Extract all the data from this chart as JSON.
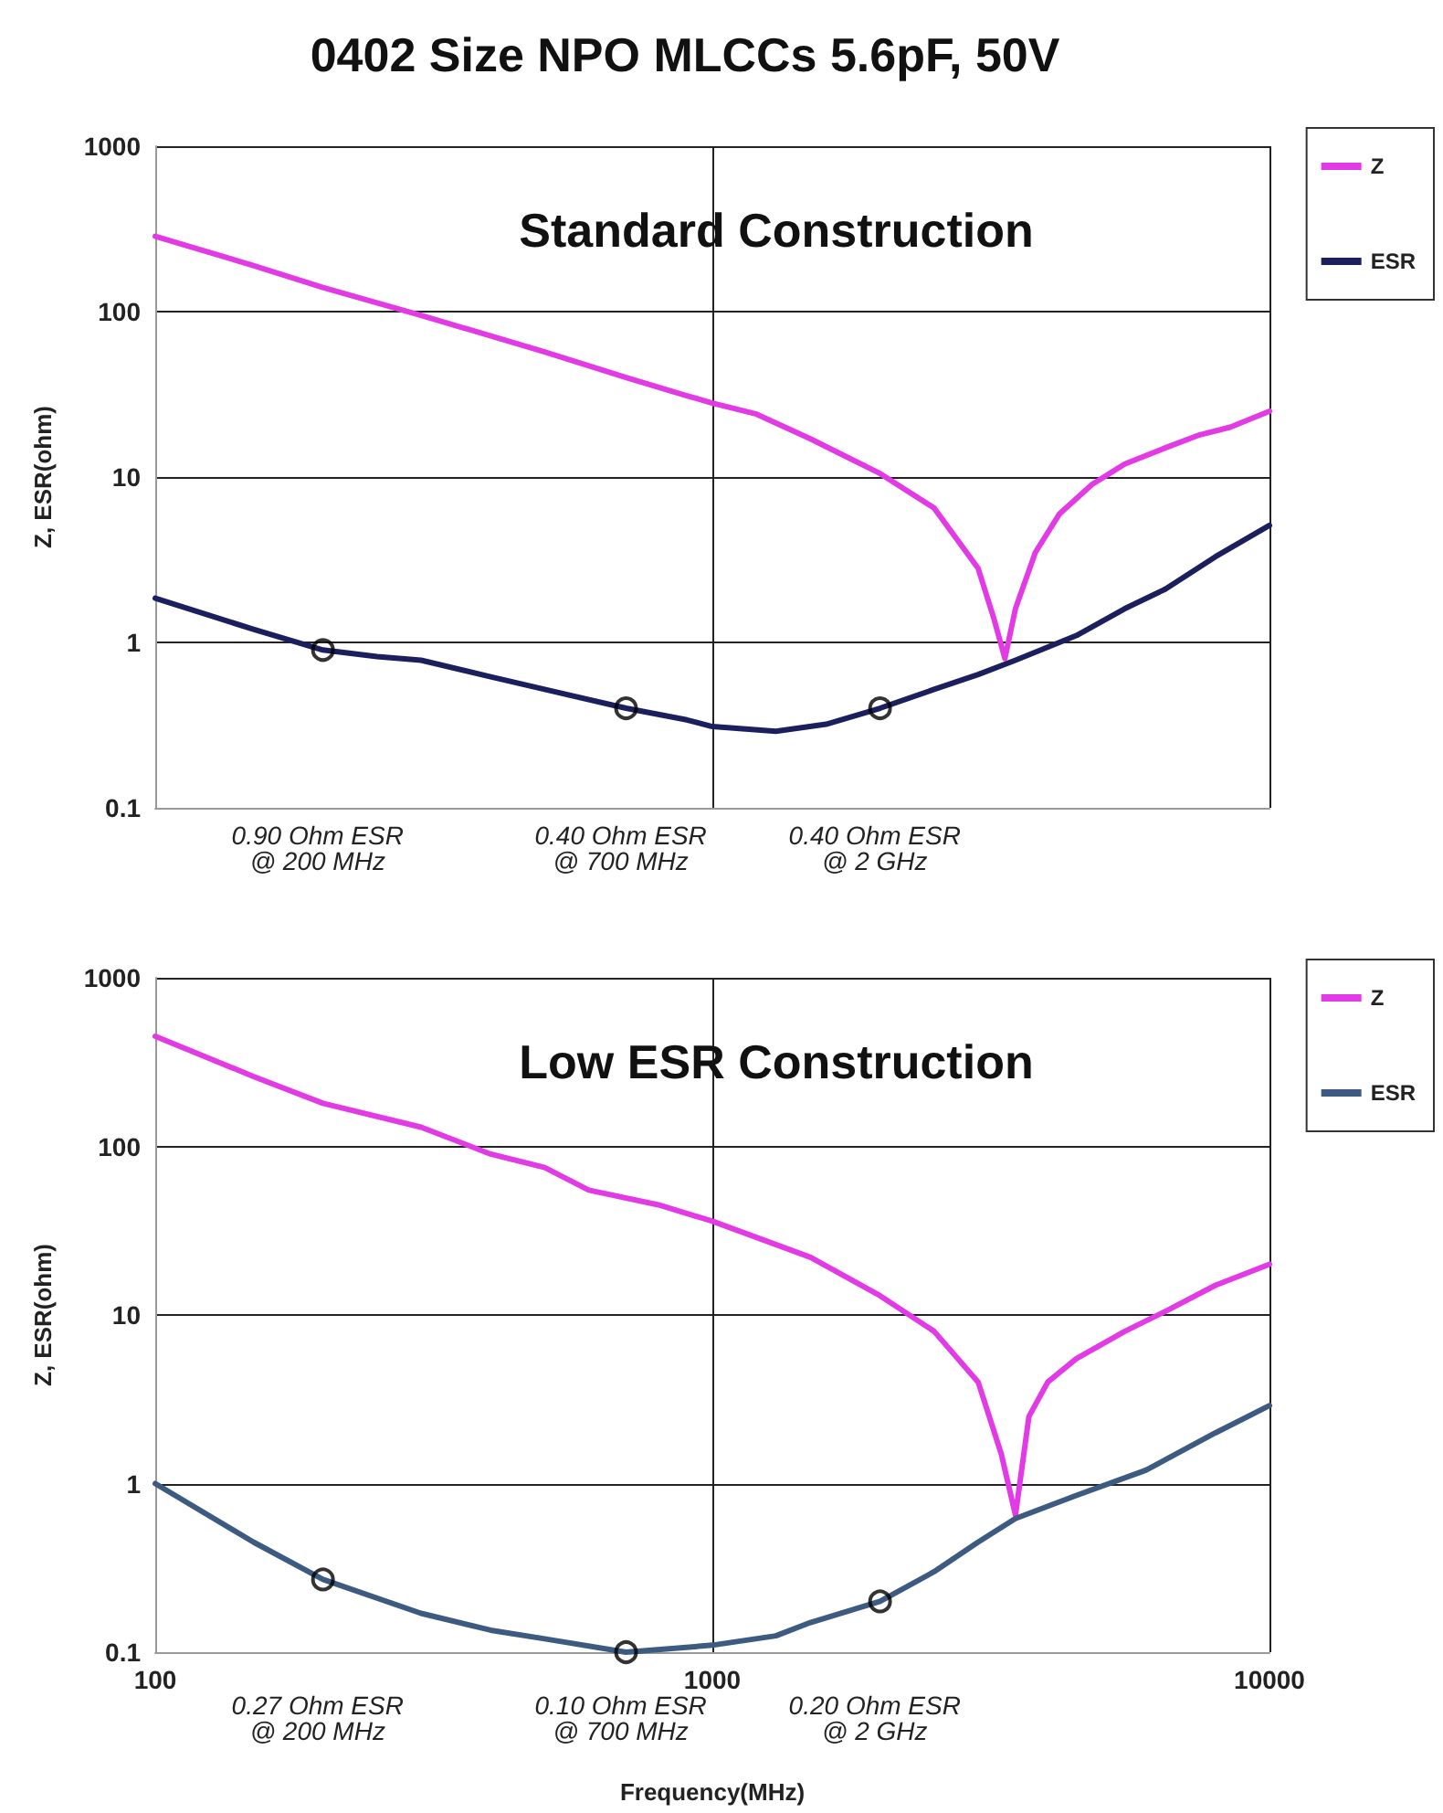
{
  "chart_data": [
    {
      "type": "line",
      "title": "0402 Size NPO MLCCs 5.6pF, 50V",
      "subtitle": "Standard Construction",
      "ylabel": "Z, ESR(ohm)",
      "log": "xy",
      "grid": true,
      "legend": "top right",
      "tick_labels": "y",
      "marker": "none",
      "line_style": "solid",
      "xlim": [
        100,
        10000
      ],
      "xticks": [
        100,
        1000,
        10000
      ],
      "ylim": [
        0.1,
        1000
      ],
      "yticks": [
        0.1,
        1,
        10,
        100,
        1000
      ],
      "series": [
        {
          "name": "Z",
          "color": "#e23be6",
          "x": [
            100,
            150,
            200,
            300,
            500,
            700,
            900,
            1000,
            1200,
            1500,
            2000,
            2500,
            3000,
            3200,
            3350,
            3500,
            3800,
            4200,
            4800,
            5500,
            6500,
            7500,
            8500,
            10000
          ],
          "values": [
            285,
            190,
            140,
            95,
            57,
            40,
            31,
            28,
            24,
            17,
            10.5,
            6.5,
            2.8,
            1.4,
            0.8,
            1.6,
            3.5,
            6,
            9,
            12,
            15,
            18,
            20,
            25
          ]
        },
        {
          "name": "ESR",
          "color": "#1c1f5e",
          "x": [
            100,
            150,
            200,
            250,
            300,
            400,
            500,
            700,
            900,
            1000,
            1300,
            1600,
            2000,
            2500,
            3000,
            3500,
            4500,
            5500,
            6500,
            8000,
            10000
          ],
          "values": [
            1.85,
            1.2,
            0.9,
            0.82,
            0.78,
            0.62,
            0.52,
            0.4,
            0.34,
            0.31,
            0.29,
            0.32,
            0.4,
            0.52,
            0.64,
            0.78,
            1.1,
            1.6,
            2.1,
            3.3,
            5.1
          ]
        },
        {
          "type": "scatter",
          "marker": "circle",
          "color": "#000000",
          "x": [
            200,
            700,
            2000
          ],
          "values": [
            0.9,
            0.4,
            0.4
          ]
        }
      ],
      "annotations": [
        "0.90 Ohm ESR\n@ 200 MHz",
        "0.40 Ohm ESR\n@ 700 MHz",
        "0.40 Ohm ESR\n@ 2 GHz"
      ]
    },
    {
      "type": "line",
      "subtitle": "Low ESR Construction",
      "xlabel": "Frequency(MHz)",
      "ylabel": "Z, ESR(ohm)",
      "log": "xy",
      "grid": true,
      "legend": "top right",
      "marker": "none",
      "line_style": "solid",
      "xlim": [
        100,
        10000
      ],
      "xticks": [
        100,
        1000,
        10000
      ],
      "ylim": [
        0.1,
        1000
      ],
      "yticks": [
        0.1,
        1,
        10,
        100,
        1000
      ],
      "series": [
        {
          "name": "Z",
          "color": "#e23be6",
          "x": [
            100,
            150,
            200,
            300,
            400,
            500,
            600,
            800,
            1000,
            1500,
            2000,
            2500,
            3000,
            3300,
            3500,
            3700,
            4000,
            4500,
            5500,
            6500,
            8000,
            10000
          ],
          "values": [
            450,
            260,
            180,
            130,
            90,
            75,
            55,
            45,
            36,
            22,
            13,
            8,
            4,
            1.5,
            0.65,
            2.5,
            4,
            5.5,
            8,
            10.5,
            15,
            20
          ]
        },
        {
          "name": "ESR",
          "color": "#3d5a80",
          "x": [
            100,
            150,
            200,
            300,
            400,
            500,
            700,
            1000,
            1300,
            1500,
            2000,
            2500,
            3000,
            3500,
            4500,
            6000,
            8000,
            10000
          ],
          "values": [
            1.0,
            0.45,
            0.27,
            0.17,
            0.135,
            0.12,
            0.1,
            0.11,
            0.125,
            0.15,
            0.2,
            0.3,
            0.45,
            0.62,
            0.85,
            1.2,
            2.0,
            2.9
          ]
        },
        {
          "type": "scatter",
          "marker": "circle",
          "color": "#000000",
          "x": [
            200,
            700,
            2000
          ],
          "values": [
            0.27,
            0.1,
            0.2
          ]
        }
      ],
      "annotations": [
        "0.27 Ohm ESR\n@ 200 MHz",
        "0.10 Ohm ESR\n@ 700 MHz",
        "0.20 Ohm ESR\n@ 2 GHz"
      ]
    }
  ]
}
